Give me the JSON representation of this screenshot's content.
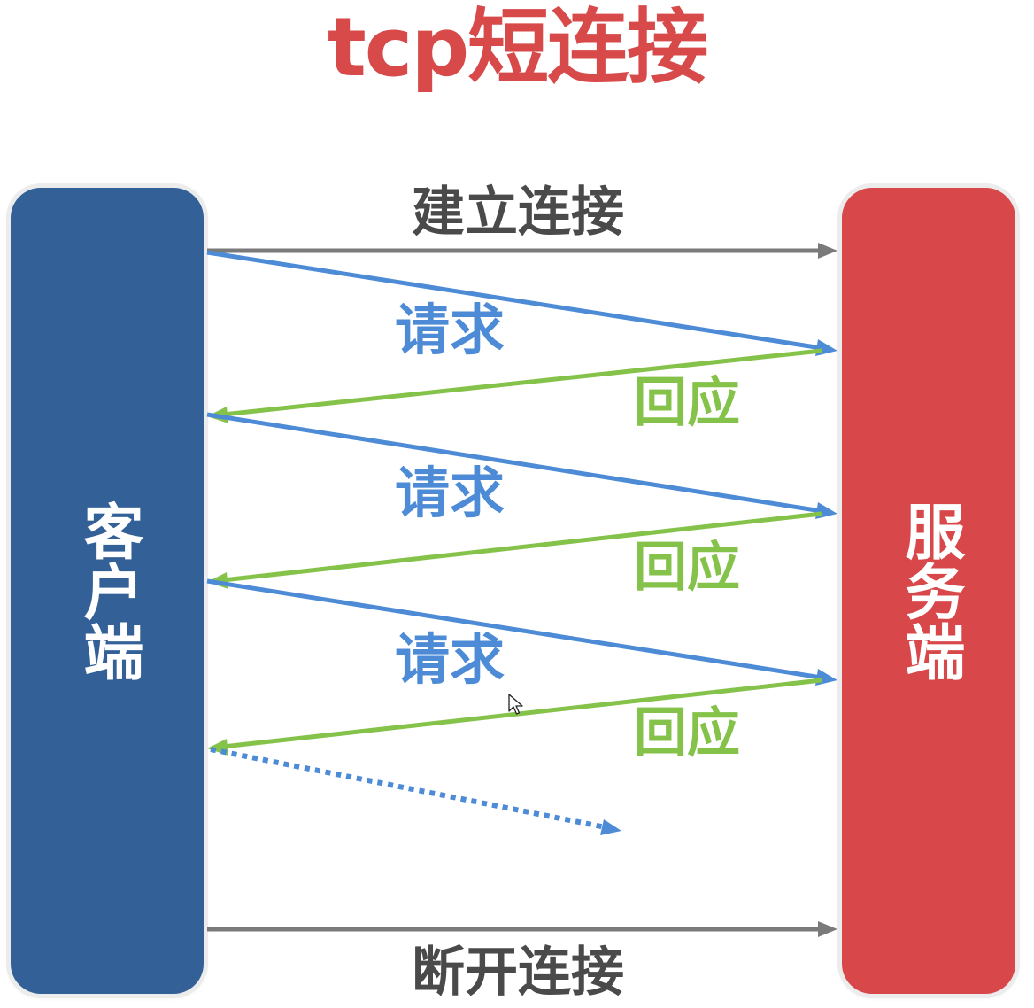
{
  "title": "tcp短连接",
  "client_label": "客户端",
  "server_label": "服务端",
  "connect_label": "建立连接",
  "disconnect_label": "断开连接",
  "exchanges": [
    {
      "request_label": "请求",
      "response_label": "回应"
    },
    {
      "request_label": "请求",
      "response_label": "回应"
    },
    {
      "request_label": "请求",
      "response_label": "回应"
    }
  ],
  "colors": {
    "title": "#d84a4a",
    "client_box": "#336096",
    "server_box": "#d8474a",
    "connection_arrow": "#7a7a7a",
    "request_arrow": "#4d8bd6",
    "response_arrow": "#85c24a",
    "connection_text": "#4a4a4a"
  }
}
